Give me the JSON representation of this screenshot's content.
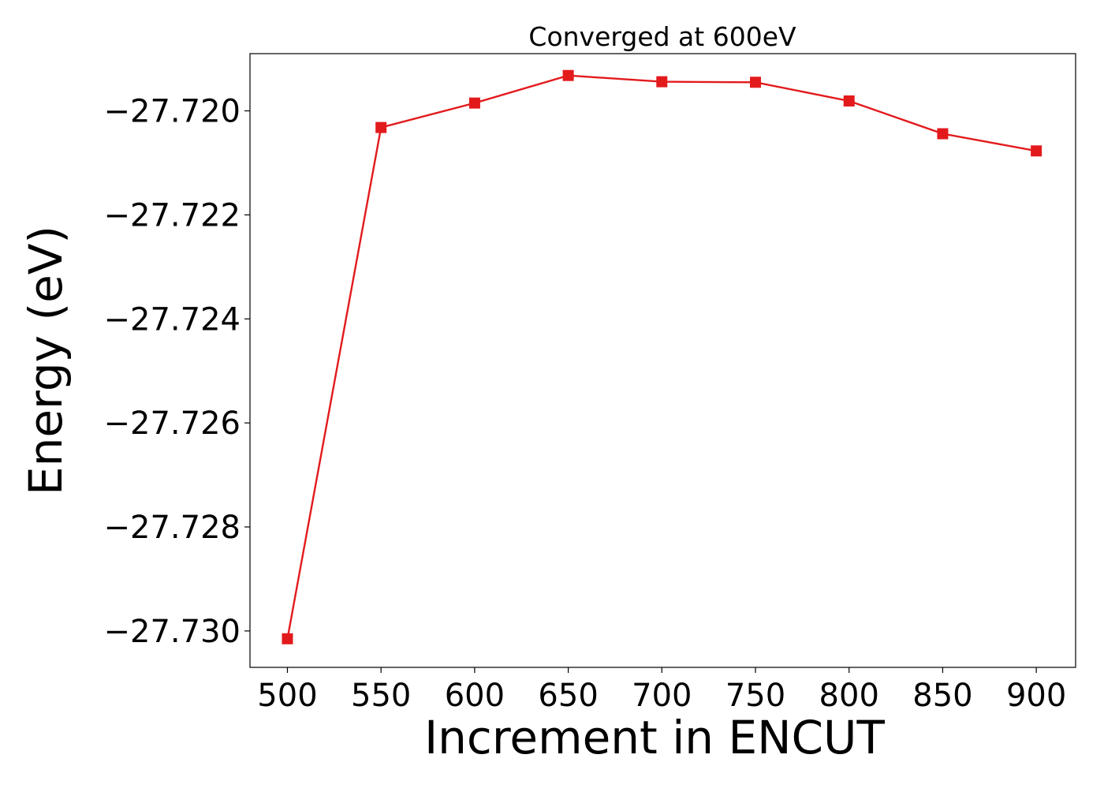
{
  "chart_data": {
    "type": "line",
    "title": "Converged at 600eV",
    "xlabel": "Increment in ENCUT",
    "ylabel": "Energy (eV)",
    "x": [
      500,
      550,
      600,
      650,
      700,
      750,
      800,
      850,
      900
    ],
    "series": [
      {
        "values": [
          -27.73015,
          -27.72032,
          -27.71985,
          -27.71932,
          -27.71944,
          -27.71945,
          -27.71981,
          -27.72044,
          -27.72077
        ],
        "color": "#e31a1c",
        "marker": "square"
      }
    ],
    "xlim": [
      480,
      921
    ],
    "ylim": [
      -27.7307,
      -27.7189
    ],
    "xticks": [
      500,
      550,
      600,
      650,
      700,
      750,
      800,
      850,
      900
    ],
    "xtick_labels": [
      "500",
      "550",
      "600",
      "650",
      "700",
      "750",
      "800",
      "850",
      "900"
    ],
    "yticks": [
      -27.72,
      -27.722,
      -27.724,
      -27.726,
      -27.728,
      -27.73
    ],
    "ytick_labels": [
      "−27.720",
      "−27.722",
      "−27.724",
      "−27.726",
      "−27.728",
      "−27.730"
    ],
    "grid": false,
    "legend": "none"
  }
}
